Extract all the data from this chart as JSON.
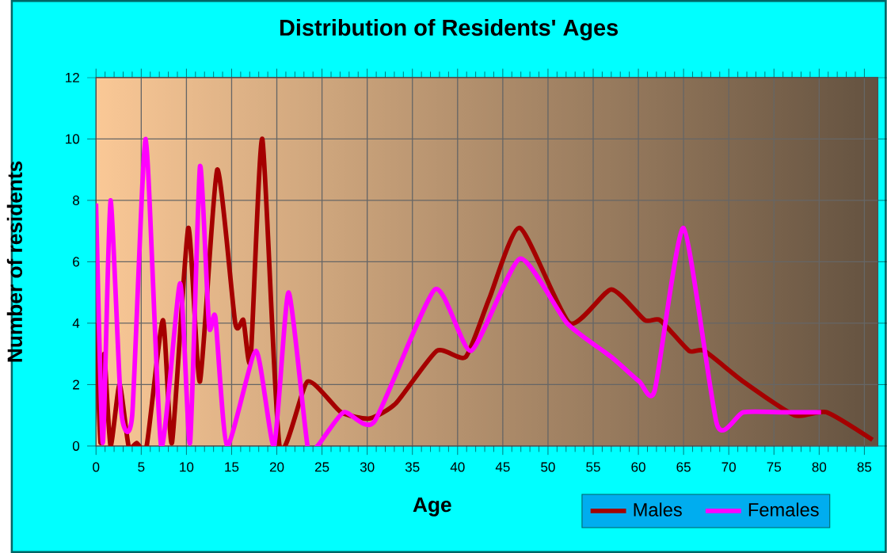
{
  "chart_data": {
    "type": "line",
    "title": "Distribution of Residents' Ages",
    "xlabel": "Age",
    "ylabel": "Number of residents",
    "xlim": [
      0,
      86.5
    ],
    "ylim": [
      0,
      12
    ],
    "xticks": [
      0,
      5,
      10,
      15,
      20,
      25,
      30,
      35,
      40,
      45,
      50,
      55,
      60,
      65,
      70,
      75,
      80,
      85
    ],
    "yticks": [
      0,
      2,
      4,
      6,
      8,
      10,
      12
    ],
    "grid": true,
    "legend": "bottom right",
    "marker": "none",
    "line_style": "solid",
    "series": [
      {
        "name": "Males",
        "color": "#a50000",
        "x": [
          0,
          0.5,
          0.9,
          1.6,
          2.6,
          3.6,
          4.5,
          5.6,
          7.4,
          8.4,
          10.2,
          11.5,
          13.4,
          15.4,
          16.3,
          17.1,
          18.4,
          20.3,
          23.4,
          27.1,
          30.3,
          33.2,
          37.7,
          40.9,
          43.5,
          46.9,
          52.4,
          57.0,
          60.7,
          62.4,
          65.6,
          67.3,
          71.6,
          77.3,
          80.8,
          85.9
        ],
        "values": [
          4,
          0.1,
          3,
          0,
          2,
          0,
          0.1,
          0,
          4.1,
          0.1,
          7.1,
          2.1,
          9,
          4,
          4.1,
          2.8,
          10,
          0,
          2.1,
          1.1,
          0.9,
          1.4,
          3.1,
          2.9,
          4.8,
          7.1,
          4,
          5.1,
          4.1,
          4.1,
          3.1,
          3.1,
          2.1,
          1,
          1.1,
          0.2
        ]
      },
      {
        "name": "Females",
        "color": "#ff00ff",
        "x": [
          0,
          0.75,
          1.6,
          2.8,
          4,
          5.5,
          7.2,
          9.3,
          10.4,
          11.5,
          12.5,
          13.2,
          14.5,
          17.7,
          19.7,
          21.3,
          23.4,
          24.5,
          27.4,
          30.8,
          37.5,
          41.5,
          46.9,
          52.1,
          57.0,
          60.1,
          61.8,
          65.0,
          68.7,
          71.6,
          76.0,
          80.2
        ],
        "values": [
          7.9,
          0.1,
          8,
          1.1,
          1,
          10,
          0,
          5.3,
          0.1,
          9.1,
          3.9,
          4.2,
          0,
          3.1,
          0,
          5,
          0,
          0,
          1.1,
          0.8,
          5.1,
          3.1,
          6.1,
          4,
          2.9,
          2.1,
          1.8,
          7.1,
          0.7,
          1.1,
          1.1,
          1.1
        ]
      }
    ]
  }
}
